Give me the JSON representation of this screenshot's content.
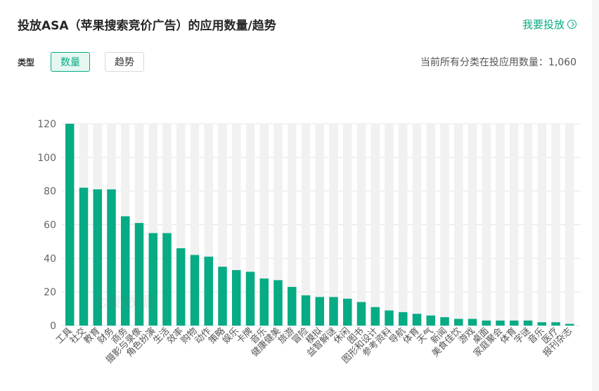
{
  "header": {
    "title": "投放ASA（苹果搜索竞价广告）的应用数量/趋势",
    "cta_label": "我要投放"
  },
  "controls": {
    "type_label": "类型",
    "tabs": [
      {
        "label": "数量",
        "active": true
      },
      {
        "label": "趋势",
        "active": false
      }
    ],
    "count_label": "当前所有分类在投应用数量：",
    "count_value": "1,060"
  },
  "watermark": "七麦数据",
  "colors": {
    "bar": "#07ab84",
    "accent": "#07ab84",
    "track": "#f1f1f1"
  },
  "chart_data": {
    "type": "bar",
    "title": "",
    "xlabel": "",
    "ylabel": "",
    "ylim": [
      0,
      120
    ],
    "yticks": [
      0,
      20,
      40,
      60,
      80,
      100,
      120
    ],
    "categories": [
      "工具",
      "社交",
      "教育",
      "财务",
      "商务",
      "摄影与录像",
      "角色扮演",
      "生活",
      "效率",
      "购物",
      "动作",
      "策略",
      "娱乐",
      "卡牌",
      "音乐",
      "健康健美",
      "旅游",
      "冒险",
      "模拟",
      "益智解谜",
      "休闲",
      "图书",
      "图形和设计",
      "参考资料",
      "导航",
      "体育",
      "天气",
      "新闻",
      "美食佳饮",
      "游戏",
      "桌面",
      "家庭聚会",
      "体育",
      "字谜",
      "音乐",
      "医疗",
      "报刊杂志"
    ],
    "values": [
      120,
      82,
      81,
      81,
      65,
      61,
      55,
      55,
      46,
      42,
      41,
      35,
      33,
      32,
      28,
      27,
      23,
      18,
      17,
      17,
      16,
      14,
      11,
      9,
      8,
      7,
      6,
      5,
      4,
      4,
      3,
      3,
      3,
      3,
      2,
      2,
      1
    ]
  }
}
